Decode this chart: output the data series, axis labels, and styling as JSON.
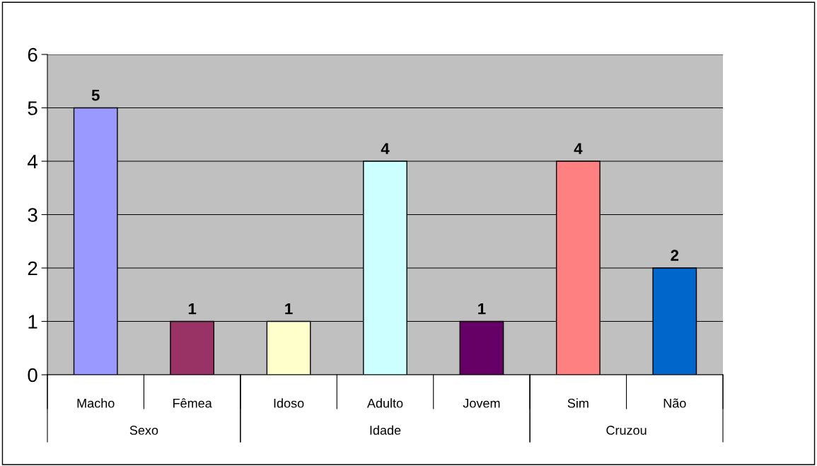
{
  "chart_data": {
    "type": "bar",
    "categories": [
      "Macho",
      "Fêmea",
      "Idoso",
      "Adulto",
      "Jovem",
      "Sim",
      "Não"
    ],
    "values": [
      5,
      1,
      1,
      4,
      1,
      4,
      2
    ],
    "colors": [
      "#9999ff",
      "#993366",
      "#ffffcc",
      "#ccffff",
      "#660066",
      "#ff8080",
      "#0066cc"
    ],
    "ylim": [
      0,
      6
    ],
    "yticks": [
      0,
      1,
      2,
      3,
      4,
      5,
      6
    ],
    "grid": "y",
    "data_labels": true,
    "annotations": [
      "Sexo",
      "Idade",
      "Cruzou"
    ]
  }
}
